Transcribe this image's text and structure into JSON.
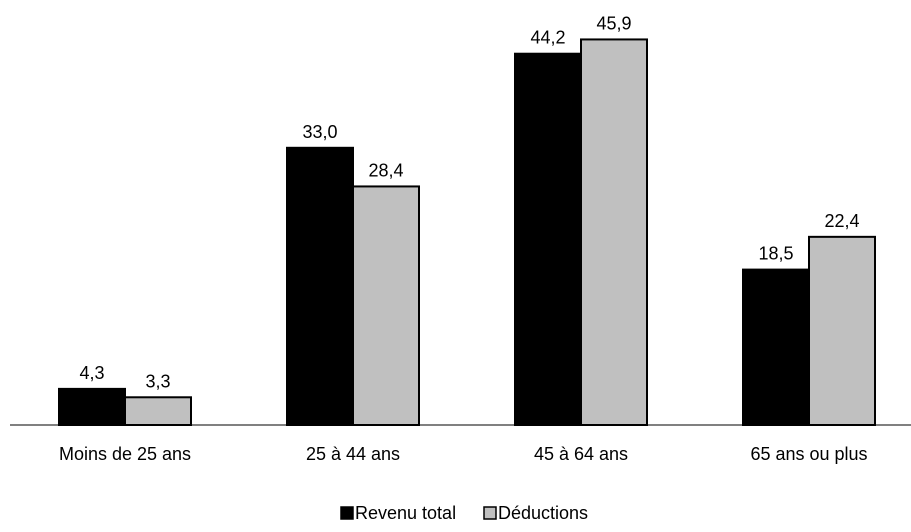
{
  "chart_data": {
    "type": "bar",
    "categories": [
      "Moins de 25 ans",
      "25 à 44 ans",
      "45 à 64 ans",
      "65 ans ou plus"
    ],
    "series": [
      {
        "name": "Revenu total",
        "values": [
          4.3,
          33.0,
          44.2,
          18.5
        ],
        "labels": [
          "4,3",
          "33,0",
          "44,2",
          "18,5"
        ],
        "color": "#000000"
      },
      {
        "name": "Déductions",
        "values": [
          3.3,
          28.4,
          45.9,
          22.4
        ],
        "labels": [
          "3,3",
          "28,4",
          "45,9",
          "22,4"
        ],
        "color": "#c0c0c0"
      }
    ],
    "ylim": [
      0,
      50
    ],
    "grid": false,
    "y_axis_visible": false,
    "legend_position": "bottom"
  }
}
